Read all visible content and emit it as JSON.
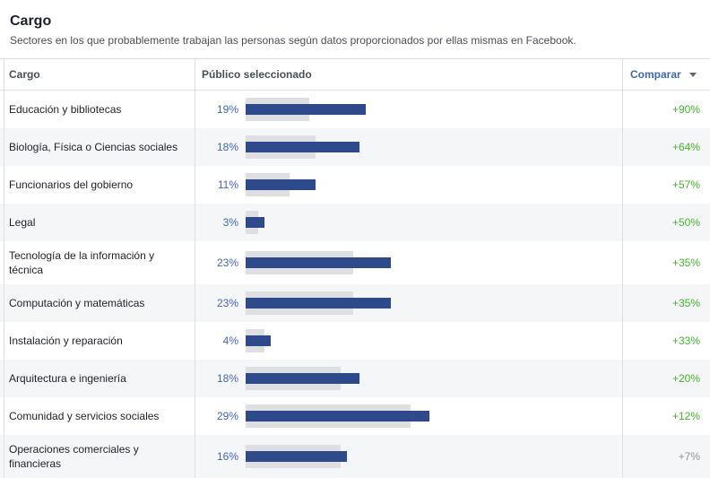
{
  "title": "Cargo",
  "subtitle": "Sectores en los que probablemente trabajan las personas según datos proporcionados por ellas mismas en Facebook.",
  "columns": {
    "cargo": "Cargo",
    "publico": "Público seleccionado",
    "compare": "Comparar"
  },
  "colors": {
    "accent": "#4267b2",
    "bar": "#2f4a8a",
    "baseline": "#dddfe2",
    "positive": "#42b72a",
    "neutral": "#90949c"
  },
  "rows": [
    {
      "label": "Educación y bibliotecas",
      "pct": "19%",
      "selected": 19,
      "baseline": 10,
      "delta": "+90%"
    },
    {
      "label": "Biología, Física o Ciencias sociales",
      "pct": "18%",
      "selected": 18,
      "baseline": 11,
      "delta": "+64%"
    },
    {
      "label": "Funcionarios del gobierno",
      "pct": "11%",
      "selected": 11,
      "baseline": 7,
      "delta": "+57%"
    },
    {
      "label": "Legal",
      "pct": "3%",
      "selected": 3,
      "baseline": 2,
      "delta": "+50%"
    },
    {
      "label": "Tecnología de la información y técnica",
      "pct": "23%",
      "selected": 23,
      "baseline": 17,
      "delta": "+35%"
    },
    {
      "label": "Computación y matemáticas",
      "pct": "23%",
      "selected": 23,
      "baseline": 17,
      "delta": "+35%"
    },
    {
      "label": "Instalación y reparación",
      "pct": "4%",
      "selected": 4,
      "baseline": 3,
      "delta": "+33%"
    },
    {
      "label": "Arquitectura e ingeniería",
      "pct": "18%",
      "selected": 18,
      "baseline": 15,
      "delta": "+20%"
    },
    {
      "label": "Comunidad y servicios sociales",
      "pct": "29%",
      "selected": 29,
      "baseline": 26,
      "delta": "+12%"
    },
    {
      "label": "Operaciones comerciales y financieras",
      "pct": "16%",
      "selected": 16,
      "baseline": 15,
      "delta": "+7%"
    }
  ]
}
